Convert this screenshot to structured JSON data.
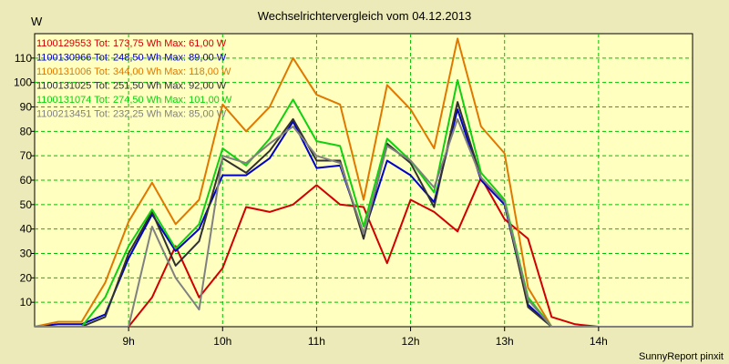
{
  "chart_data": {
    "type": "line",
    "title": "Wechselrichtervergleich vom 04.12.2013",
    "ylabel": "W",
    "xlabel": "",
    "ylim": [
      0,
      120
    ],
    "yticks": [
      10,
      20,
      30,
      40,
      50,
      60,
      70,
      80,
      90,
      100,
      110
    ],
    "xlim": [
      8.0,
      15.0
    ],
    "xticks": [
      {
        "value": 9,
        "label": "9h"
      },
      {
        "value": 10,
        "label": "10h"
      },
      {
        "value": 11,
        "label": "11h"
      },
      {
        "value": 12,
        "label": "12h"
      },
      {
        "value": 13,
        "label": "13h"
      },
      {
        "value": 14,
        "label": "14h"
      }
    ],
    "grid": true,
    "footer": "SunnyReport pinxit",
    "x": [
      8.0,
      8.25,
      8.5,
      8.75,
      9.0,
      9.25,
      9.5,
      9.75,
      10.0,
      10.25,
      10.5,
      10.75,
      11.0,
      11.25,
      11.5,
      11.75,
      12.0,
      12.25,
      12.5,
      12.75,
      13.0,
      13.25,
      13.5,
      13.75,
      14.0,
      14.25,
      14.5,
      14.75,
      15.0
    ],
    "series": [
      {
        "name": "1100129553",
        "legend": "1100129553 Tot: 173,75 Wh Max: 61,00 W",
        "color": "#d00000",
        "values": [
          0,
          0,
          0,
          0,
          0,
          12,
          33,
          12,
          24,
          49,
          47,
          50,
          58,
          50,
          49,
          26,
          52,
          47,
          39,
          61,
          44,
          36,
          4,
          1,
          0,
          0,
          0,
          0,
          0
        ]
      },
      {
        "name": "1100130966",
        "legend": "1100130966 Tot: 248,50 Wh Max: 89,00 W",
        "color": "#0000c8",
        "values": [
          0,
          1,
          1,
          5,
          28,
          46,
          31,
          40,
          62,
          62,
          69,
          84,
          65,
          66,
          38,
          68,
          62,
          51,
          89,
          60,
          50,
          9,
          0,
          0,
          0,
          0,
          0,
          0,
          0
        ]
      },
      {
        "name": "1100131006",
        "legend": "1100131006 Tot: 344,00 Wh Max: 118,00 W",
        "color": "#e07800",
        "values": [
          0,
          2,
          2,
          18,
          43,
          59,
          42,
          52,
          91,
          80,
          90,
          110,
          95,
          91,
          52,
          99,
          89,
          73,
          118,
          82,
          71,
          16,
          0,
          0,
          0,
          0,
          0,
          0,
          0
        ]
      },
      {
        "name": "1100131025",
        "legend": "1100131025 Tot: 251,50 Wh Max: 92,00 W",
        "color": "#303030",
        "values": [
          0,
          0,
          0,
          4,
          30,
          47,
          25,
          35,
          69,
          63,
          72,
          85,
          68,
          68,
          36,
          75,
          67,
          49,
          92,
          61,
          51,
          8,
          0,
          0,
          0,
          0,
          0,
          0,
          0
        ]
      },
      {
        "name": "1100131074",
        "legend": "1100131074 Tot: 274,50 Wh Max: 101,00 W",
        "color": "#10d010",
        "values": [
          0,
          0,
          0,
          12,
          33,
          48,
          32,
          42,
          73,
          66,
          77,
          93,
          76,
          74,
          41,
          77,
          68,
          55,
          101,
          63,
          52,
          12,
          0,
          0,
          0,
          0,
          0,
          0,
          0
        ]
      },
      {
        "name": "1100213451",
        "legend": "1100213451 Tot: 232,25 Wh Max: 85,00 W",
        "color": "#808080",
        "values": [
          0,
          0,
          0,
          0,
          0,
          41,
          20,
          7,
          70,
          67,
          75,
          82,
          70,
          67,
          38,
          74,
          68,
          57,
          85,
          61,
          51,
          11,
          0,
          0,
          0,
          0,
          0,
          0,
          0
        ]
      }
    ]
  }
}
